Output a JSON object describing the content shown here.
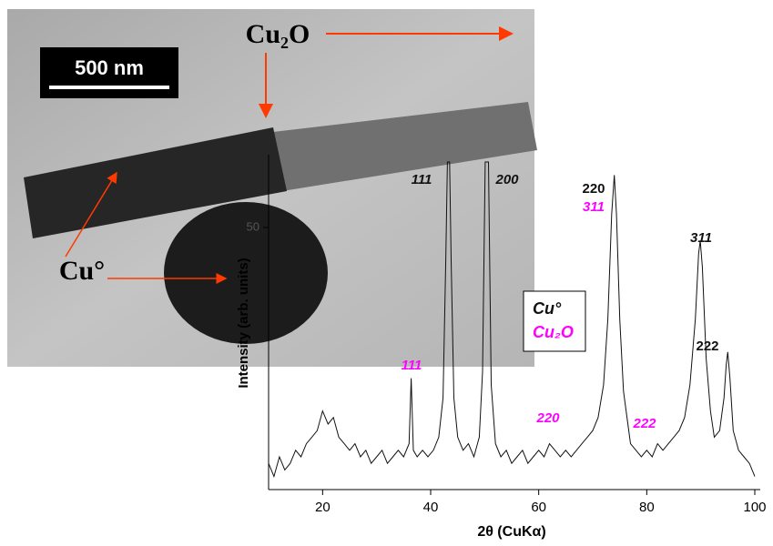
{
  "chart_data": {
    "type": "line",
    "color": "#111111",
    "x_label": "2θ (CuKα)",
    "y_label": "Intensity (arb. units)",
    "xlim": [
      10,
      100
    ],
    "xticks": [
      20,
      40,
      60,
      80,
      100
    ],
    "ylim": [
      10,
      60
    ],
    "yticks": [
      50
    ],
    "x": [
      10,
      11,
      12,
      13,
      14,
      15,
      16,
      17,
      18,
      19,
      20,
      21,
      22,
      23,
      24,
      25,
      26,
      27,
      28,
      29,
      30,
      31,
      32,
      33,
      34,
      35,
      36,
      36.4,
      36.8,
      37.5,
      38.5,
      39.5,
      40.5,
      41.5,
      42.3,
      42.8,
      43.1,
      43.3,
      43.5,
      43.8,
      44.3,
      45,
      46,
      47,
      48,
      49,
      49.6,
      50.1,
      50.4,
      50.7,
      51.2,
      52,
      53,
      54,
      55,
      56,
      57,
      58,
      59,
      60,
      61,
      62,
      63,
      64,
      65,
      66,
      67,
      68,
      69,
      70,
      71,
      72,
      72.8,
      73.5,
      74,
      74.4,
      75,
      75.7,
      76.5,
      77,
      78,
      79,
      80,
      81,
      82,
      83,
      84,
      85,
      86,
      87,
      88,
      89,
      89.6,
      89.9,
      90.3,
      91,
      91.8,
      92.5,
      93.5,
      94.3,
      94.7,
      95,
      95.4,
      96,
      97,
      98,
      99,
      100
    ],
    "values": [
      14,
      12,
      15,
      13,
      14,
      16,
      15,
      17,
      18,
      19,
      22,
      20,
      21,
      18,
      17,
      16,
      17,
      15,
      16,
      14,
      15,
      16,
      14,
      15,
      16,
      15,
      17,
      27,
      16,
      15,
      16,
      15,
      16,
      18,
      24,
      45,
      60,
      60,
      60,
      45,
      24,
      18,
      16,
      17,
      15,
      18,
      28,
      60,
      60,
      60,
      26,
      17,
      15,
      16,
      14,
      15,
      16,
      14,
      15,
      16,
      15,
      17,
      16,
      15,
      16,
      15,
      16,
      17,
      18,
      19,
      21,
      26,
      36,
      52,
      58,
      52,
      36,
      25,
      20,
      17,
      16,
      15,
      16,
      15,
      17,
      16,
      17,
      18,
      19,
      21,
      26,
      36,
      46,
      48,
      44,
      30,
      22,
      18,
      19,
      24,
      29,
      31,
      27,
      19,
      16,
      15,
      14,
      12
    ],
    "annotations": [
      {
        "text": "111",
        "color": "#111111"
      },
      {
        "text": "200",
        "color": "#111111"
      },
      {
        "text": "220",
        "color": "#111111"
      },
      {
        "text": "311",
        "color": "#ff00ff"
      },
      {
        "text": "311",
        "color": "#111111"
      },
      {
        "text": "222",
        "color": "#111111"
      },
      {
        "text": "111",
        "color": "#ff00ff"
      },
      {
        "text": "220",
        "color": "#ff00ff"
      },
      {
        "text": "222",
        "color": "#ff00ff"
      }
    ],
    "legend": [
      {
        "name": "Cu°",
        "color": "#111111"
      },
      {
        "name": "Cu₂O",
        "color": "#ff00ff"
      }
    ]
  },
  "image": {
    "scale_bar": "500 nm",
    "labels": [
      "Cu₂O",
      "Cu°"
    ]
  }
}
